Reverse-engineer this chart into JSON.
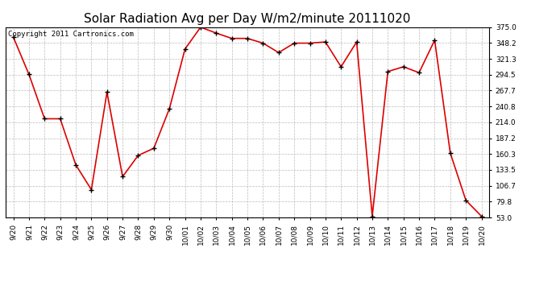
{
  "title": "Solar Radiation Avg per Day W/m2/minute 20111020",
  "copyright_text": "Copyright 2011 Cartronics.com",
  "labels": [
    "9/20",
    "9/21",
    "9/22",
    "9/23",
    "9/24",
    "9/25",
    "9/26",
    "9/27",
    "9/28",
    "9/29",
    "9/30",
    "10/01",
    "10/02",
    "10/03",
    "10/04",
    "10/05",
    "10/06",
    "10/07",
    "10/08",
    "10/09",
    "10/10",
    "10/11",
    "10/12",
    "10/13",
    "10/14",
    "10/15",
    "10/16",
    "10/17",
    "10/18",
    "10/19",
    "10/20"
  ],
  "values": [
    358.0,
    295.0,
    220.0,
    220.0,
    142.0,
    100.0,
    265.0,
    122.0,
    158.0,
    170.0,
    237.0,
    338.0,
    375.0,
    365.0,
    356.0,
    356.0,
    348.0,
    332.0,
    348.0,
    348.0,
    350.0,
    308.0,
    350.0,
    55.0,
    300.0,
    308.0,
    298.0,
    353.0,
    162.0,
    82.0,
    55.0
  ],
  "yticks": [
    53.0,
    79.8,
    106.7,
    133.5,
    160.3,
    187.2,
    214.0,
    240.8,
    267.7,
    294.5,
    321.3,
    348.2,
    375.0
  ],
  "ymin": 53.0,
  "ymax": 375.0,
  "line_color": "#dd0000",
  "marker_color": "#000000",
  "bg_color": "#ffffff",
  "grid_color": "#bbbbbb",
  "title_fontsize": 11,
  "copyright_fontsize": 6.5,
  "tick_fontsize": 6.5
}
